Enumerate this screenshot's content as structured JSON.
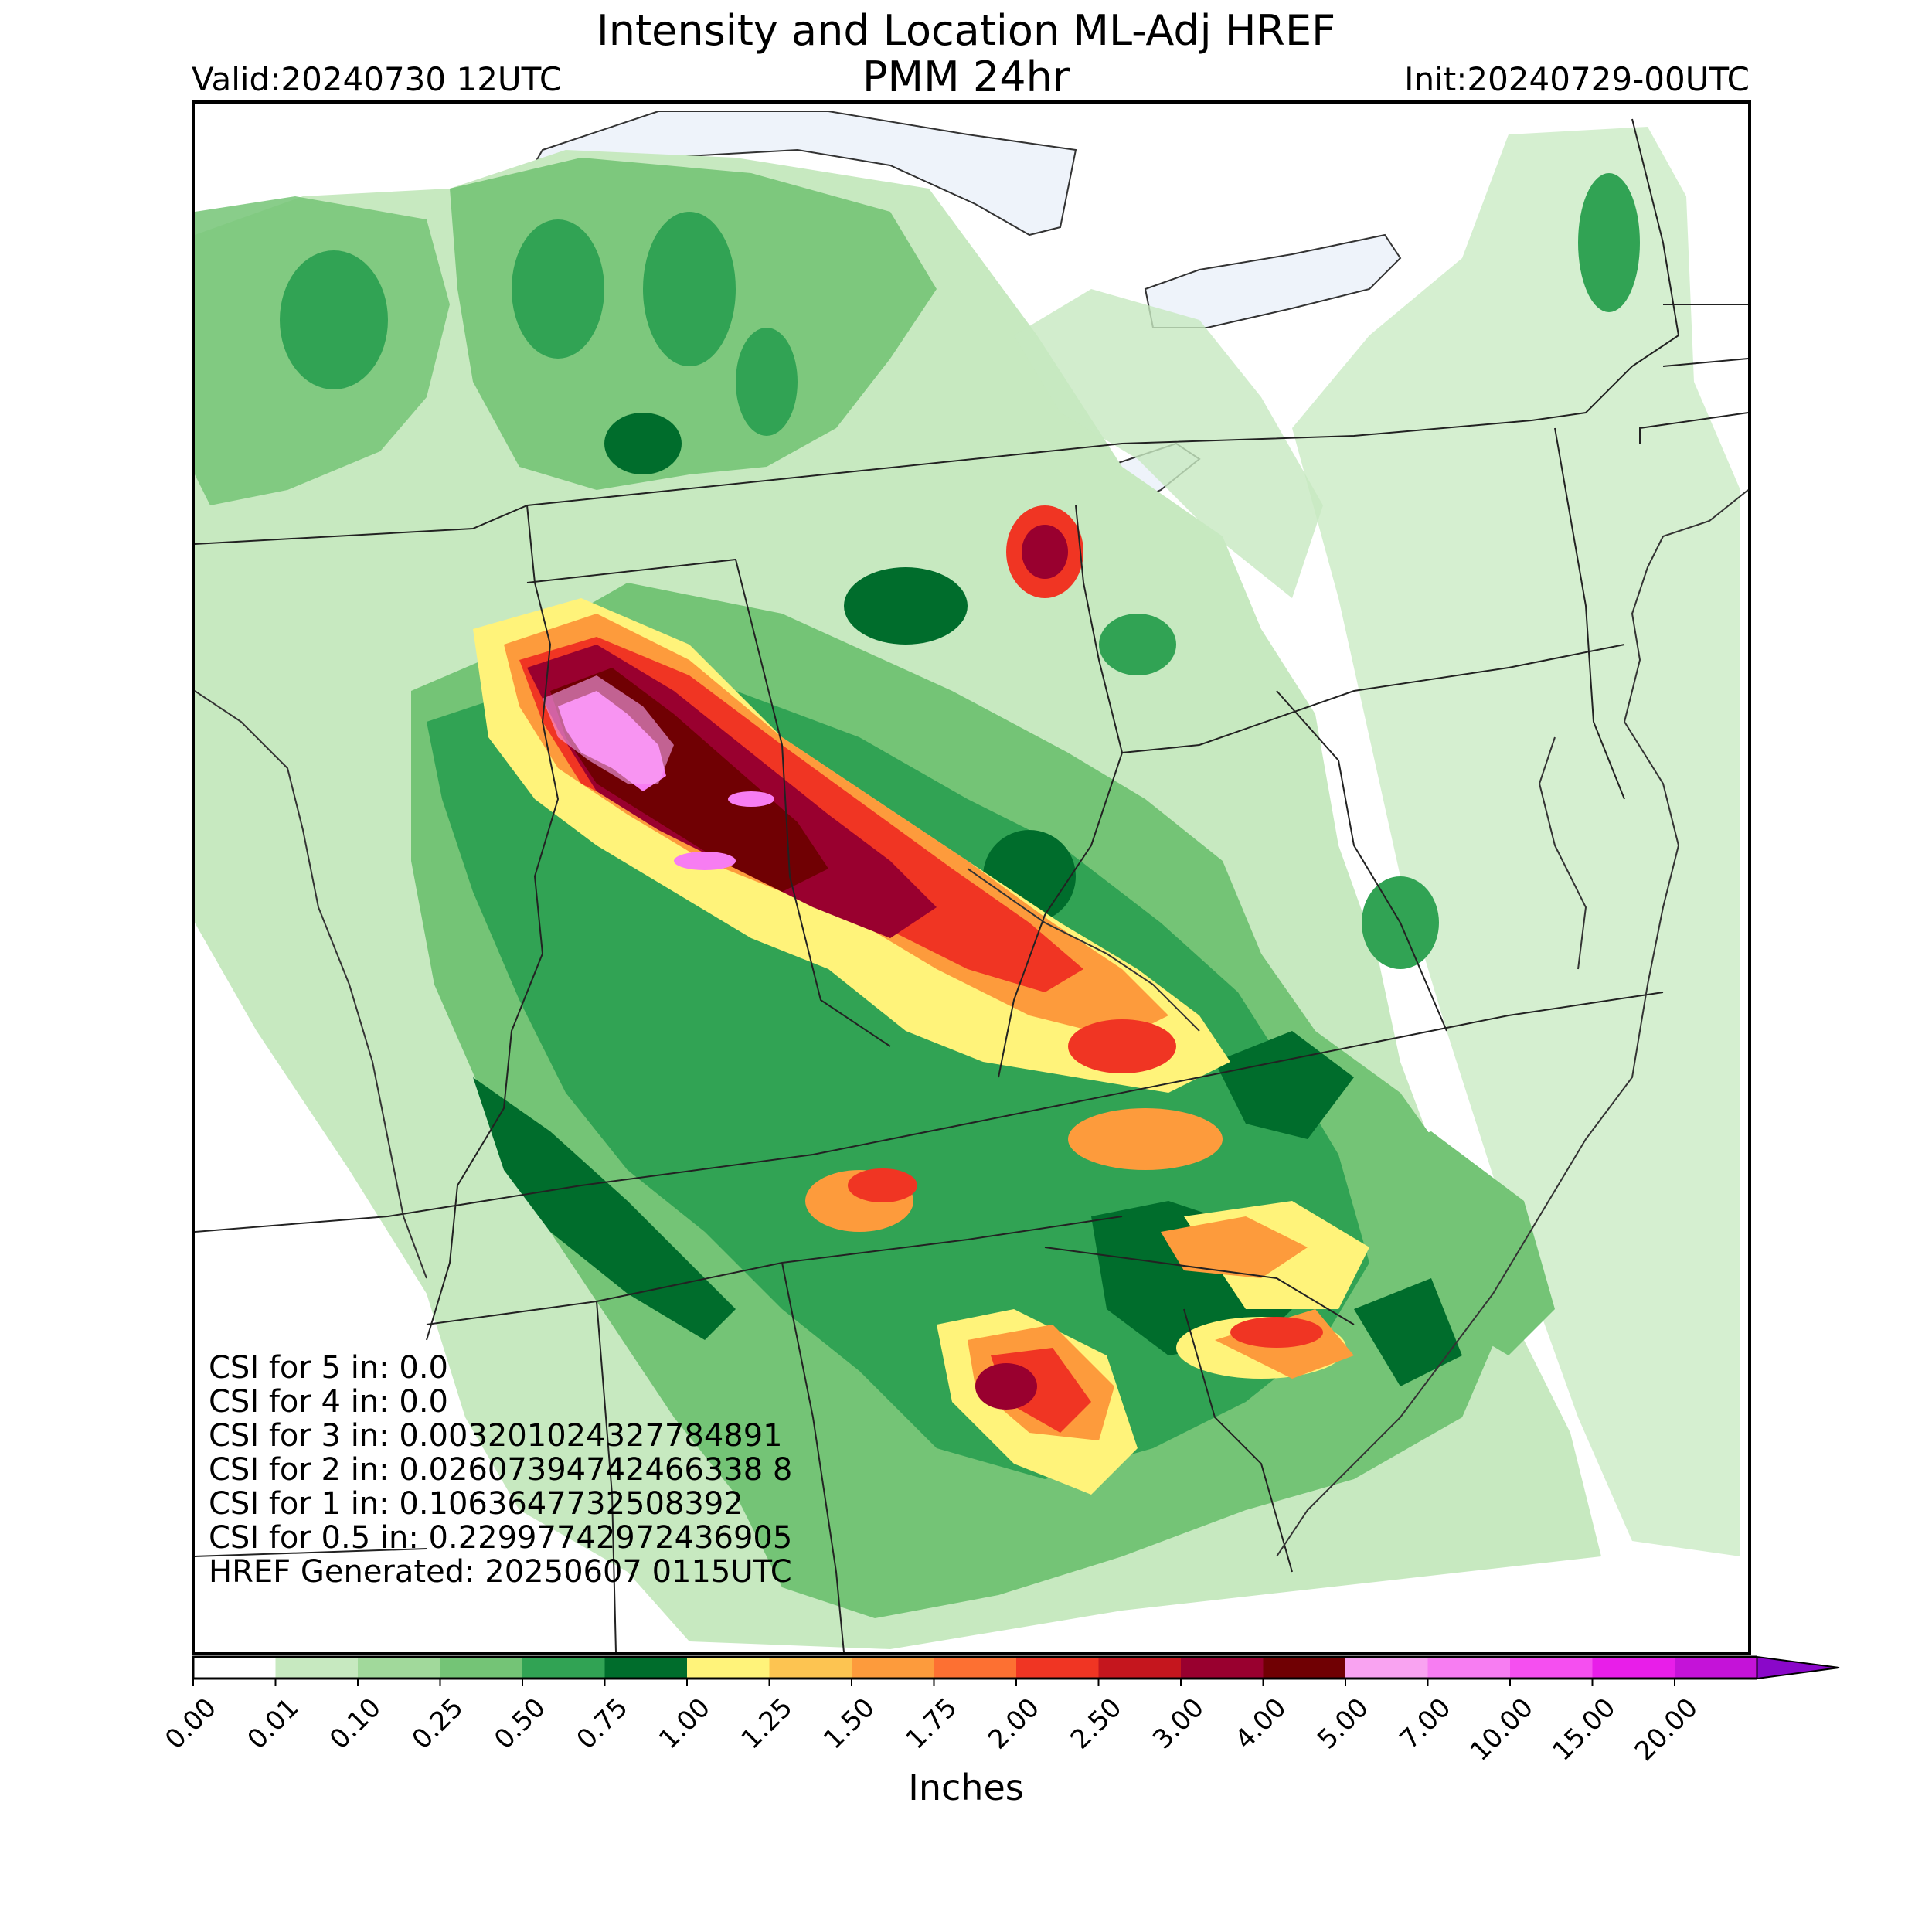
{
  "title": "Intensity and Location ML-Adj HREF",
  "subtitle": "PMM 24hr",
  "valid": "Valid:20240730 12UTC",
  "init": "Init:20240729-00UTC",
  "colorbar": {
    "label": "Inches",
    "ticks": [
      "0.00",
      "0.01",
      "0.10",
      "0.25",
      "0.50",
      "0.75",
      "1.00",
      "1.25",
      "1.50",
      "1.75",
      "2.00",
      "2.50",
      "3.00",
      "4.00",
      "5.00",
      "7.00",
      "10.00",
      "15.00",
      "20.00"
    ],
    "colors": [
      "#ffffff",
      "#c7e9c0",
      "#a1d99b",
      "#74c476",
      "#31a354",
      "#006d2c",
      "#fff37a",
      "#fdc451",
      "#fd9b3c",
      "#fd7032",
      "#f03523",
      "#c5161e",
      "#99002f",
      "#700003",
      "#f9a3f1",
      "#f77df2",
      "#f54ff0",
      "#e81ee9",
      "#c413d8",
      "#8a08c9"
    ]
  },
  "stats": [
    "CSI for 5 in: 0.0",
    "CSI for 4 in: 0.0",
    "CSI for 3 in: 0.003201024327784891",
    "CSI for 2 in: 0.02607394742466338 8",
    "CSI for 1 in: 0.1063647732508392",
    "CSI for 0.5 in: 0.22997742972436905",
    "HREF Generated: 20250607 0115UTC"
  ]
}
